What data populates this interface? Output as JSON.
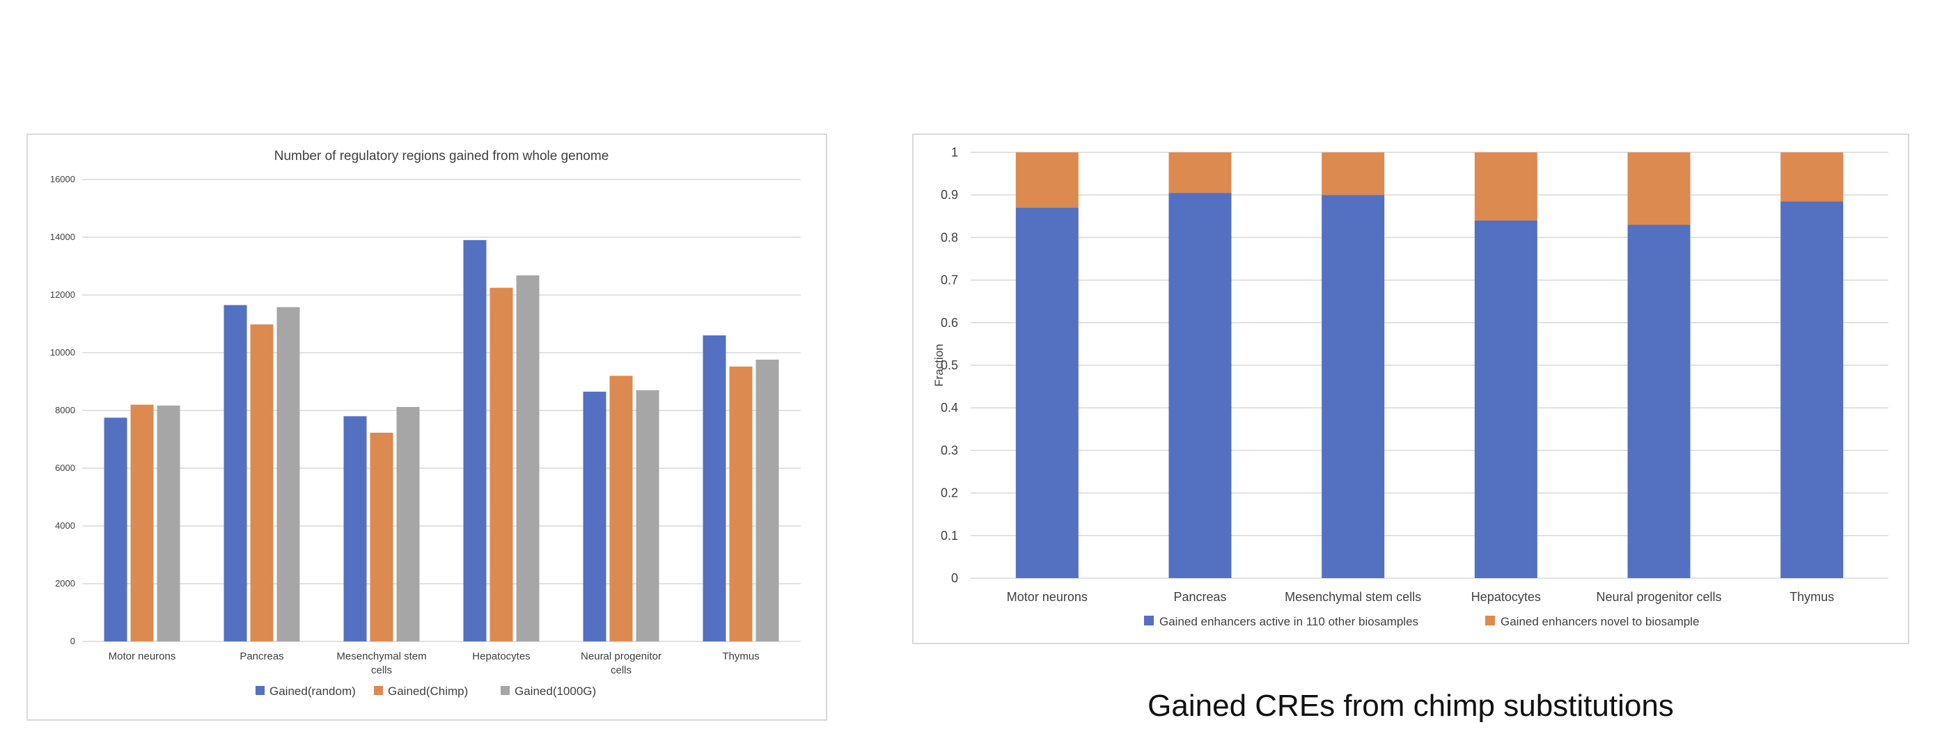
{
  "caption": "Gained CREs from chimp substitutions",
  "chart_data": [
    {
      "type": "bar",
      "title": "Number of regulatory regions gained from whole genome",
      "xlabel": "",
      "ylabel": "",
      "categories": [
        "Motor neurons",
        "Pancreas",
        "Mesenchymal stem cells",
        "Hepatocytes",
        "Neural progenitor cells",
        "Thymus"
      ],
      "ylim": [
        0,
        16000
      ],
      "yticks": [
        "0",
        "2000",
        "4000",
        "6000",
        "8000",
        "10000",
        "12000",
        "14000",
        "16000"
      ],
      "grid": true,
      "legend": "bottom",
      "series": [
        {
          "name": "Gained(random)",
          "color": "#5470c1",
          "values": [
            7750,
            11650,
            7800,
            13900,
            8650,
            10600
          ]
        },
        {
          "name": "Gained(Chimp)",
          "color": "#dc8a50",
          "values": [
            8200,
            10980,
            7230,
            12250,
            9200,
            9520
          ]
        },
        {
          "name": "Gained(1000G)",
          "color": "#a6a6a6",
          "values": [
            8170,
            11580,
            8120,
            12680,
            8700,
            9760
          ]
        }
      ]
    },
    {
      "type": "bar",
      "stacked": true,
      "title": "",
      "xlabel": "",
      "ylabel": "Fraction",
      "categories": [
        "Motor neurons",
        "Pancreas",
        "Mesenchymal stem cells",
        "Hepatocytes",
        "Neural progenitor cells",
        "Thymus"
      ],
      "ylim": [
        0,
        1
      ],
      "yticks": [
        "0",
        "0.1",
        "0.2",
        "0.3",
        "0.4",
        "0.5",
        "0.6",
        "0.7",
        "0.8",
        "0.9",
        "1"
      ],
      "grid": true,
      "legend": "bottom",
      "series": [
        {
          "name": "Gained enhancers active in 110 other biosamples",
          "color": "#5470c1",
          "values": [
            0.87,
            0.905,
            0.9,
            0.84,
            0.83,
            0.885
          ]
        },
        {
          "name": "Gained enhancers novel to biosample",
          "color": "#dc8a50",
          "values": [
            0.13,
            0.095,
            0.1,
            0.16,
            0.17,
            0.115
          ]
        }
      ]
    }
  ]
}
